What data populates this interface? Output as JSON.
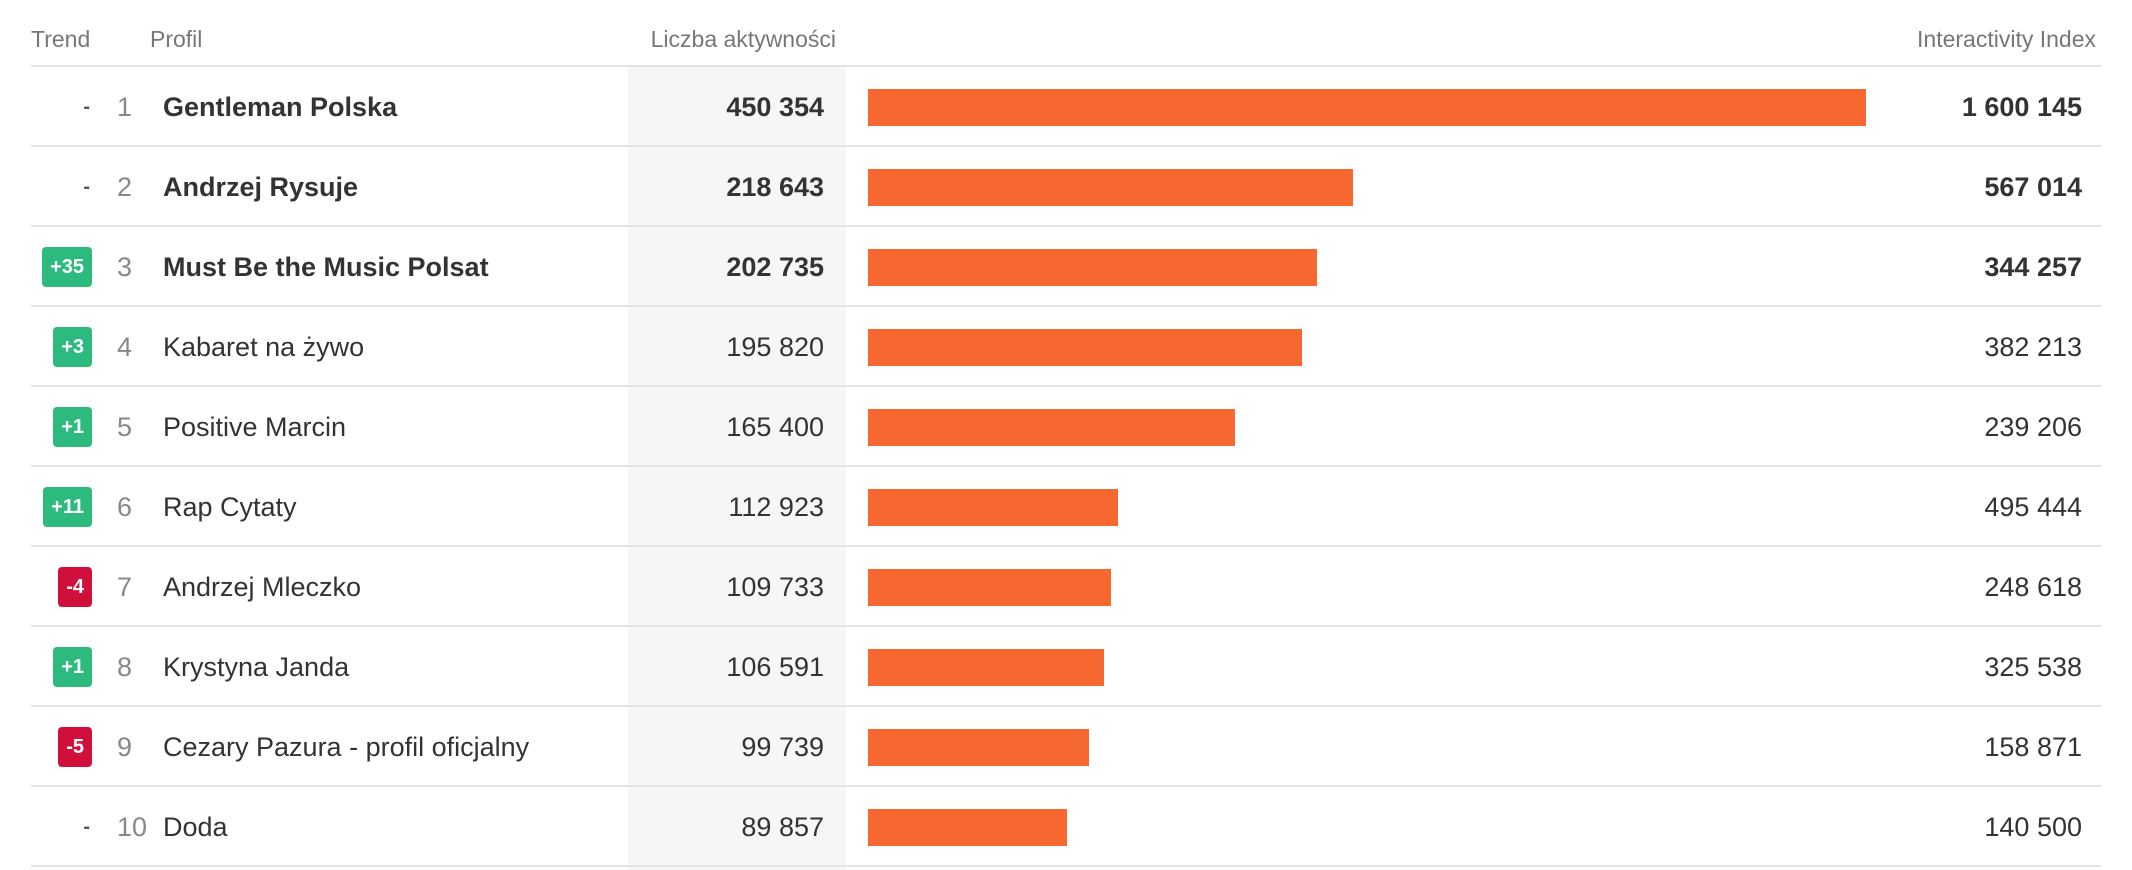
{
  "headers": {
    "trend": "Trend",
    "profile": "Profil",
    "activities": "Liczba aktywności",
    "index": "Interactivity Index"
  },
  "colors": {
    "bar": "#f6682f",
    "up": "#2dba7f",
    "down": "#d0103a"
  },
  "rows": [
    {
      "trend": "-",
      "rank": "1",
      "name": "Gentleman Polska",
      "activities": "450 354",
      "activities_value": 450354,
      "index": "1 600 145",
      "bold": true
    },
    {
      "trend": "-",
      "rank": "2",
      "name": "Andrzej Rysuje",
      "activities": "218 643",
      "activities_value": 218643,
      "index": "567 014",
      "bold": true
    },
    {
      "trend": "+35",
      "rank": "3",
      "name": "Must Be the Music Polsat",
      "activities": "202 735",
      "activities_value": 202735,
      "index": "344 257",
      "bold": true
    },
    {
      "trend": "+3",
      "rank": "4",
      "name": "Kabaret na żywo",
      "activities": "195 820",
      "activities_value": 195820,
      "index": "382 213",
      "bold": false
    },
    {
      "trend": "+1",
      "rank": "5",
      "name": "Positive Marcin",
      "activities": "165 400",
      "activities_value": 165400,
      "index": "239 206",
      "bold": false
    },
    {
      "trend": "+11",
      "rank": "6",
      "name": "Rap Cytaty",
      "activities": "112 923",
      "activities_value": 112923,
      "index": "495 444",
      "bold": false
    },
    {
      "trend": "-4",
      "rank": "7",
      "name": "Andrzej Mleczko",
      "activities": "109 733",
      "activities_value": 109733,
      "index": "248 618",
      "bold": false
    },
    {
      "trend": "+1",
      "rank": "8",
      "name": "Krystyna Janda",
      "activities": "106 591",
      "activities_value": 106591,
      "index": "325 538",
      "bold": false
    },
    {
      "trend": "-5",
      "rank": "9",
      "name": "Cezary Pazura - profil oficjalny",
      "activities": "99 739",
      "activities_value": 99739,
      "index": "158 871",
      "bold": false
    },
    {
      "trend": "-",
      "rank": "10",
      "name": "Doda",
      "activities": "89 857",
      "activities_value": 89857,
      "index": "140 500",
      "bold": false
    }
  ]
}
